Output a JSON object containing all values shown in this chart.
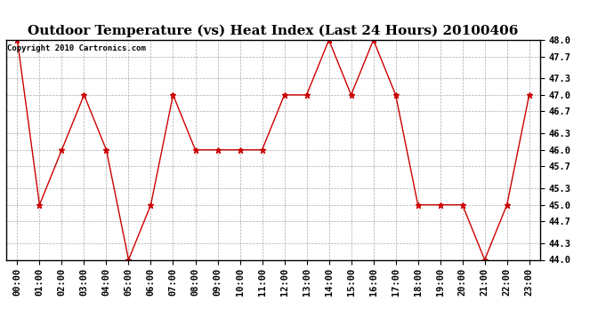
{
  "title": "Outdoor Temperature (vs) Heat Index (Last 24 Hours) 20100406",
  "copyright_text": "Copyright 2010 Cartronics.com",
  "x_labels": [
    "00:00",
    "01:00",
    "02:00",
    "03:00",
    "04:00",
    "05:00",
    "06:00",
    "07:00",
    "08:00",
    "09:00",
    "10:00",
    "11:00",
    "12:00",
    "13:00",
    "14:00",
    "15:00",
    "16:00",
    "17:00",
    "18:00",
    "19:00",
    "20:00",
    "21:00",
    "22:00",
    "23:00"
  ],
  "y_values": [
    48.0,
    45.0,
    46.0,
    47.0,
    46.0,
    44.0,
    45.0,
    47.0,
    46.0,
    46.0,
    46.0,
    46.0,
    47.0,
    47.0,
    48.0,
    47.0,
    48.0,
    47.0,
    45.0,
    45.0,
    45.0,
    44.0,
    45.0,
    47.0
  ],
  "y_min": 44.0,
  "y_max": 48.0,
  "y_ticks": [
    44.0,
    44.3,
    44.7,
    45.0,
    45.3,
    45.7,
    46.0,
    46.3,
    46.7,
    47.0,
    47.3,
    47.7,
    48.0
  ],
  "line_color": "#cc0000",
  "marker": "*",
  "marker_size": 5,
  "background_color": "#ffffff",
  "grid_color": "#aaaaaa",
  "title_fontsize": 11,
  "tick_fontsize": 7.5,
  "copyright_fontsize": 6.5
}
